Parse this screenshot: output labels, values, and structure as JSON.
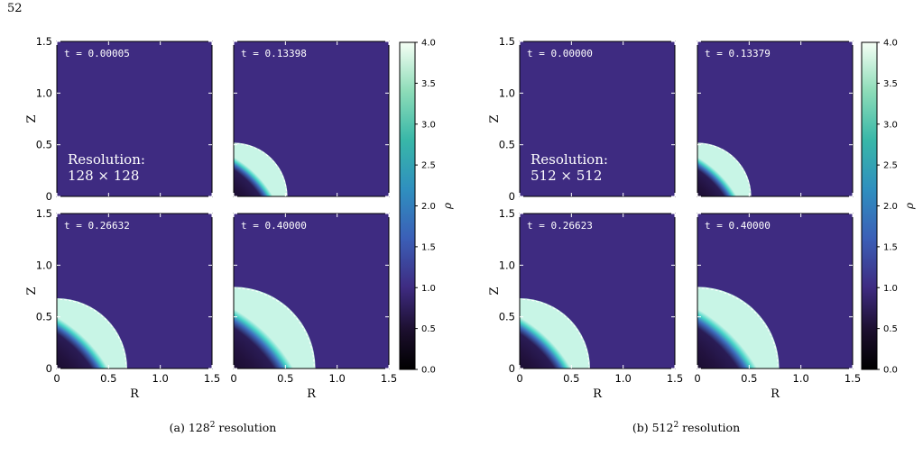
{
  "page_number": "52",
  "colormap": {
    "label": "ρ",
    "ticks": [
      "0.0",
      "0.5",
      "1.0",
      "1.5",
      "2.0",
      "2.5",
      "3.0",
      "3.5",
      "4.0"
    ],
    "range": [
      0,
      4
    ],
    "background_color": "#3e2b81"
  },
  "chart_data": [
    {
      "type": "heatmap",
      "xlabel": "R",
      "ylabel": "Z",
      "xlim": [
        0,
        1.5
      ],
      "ylim": [
        0,
        1.5
      ],
      "xticks": [
        "0",
        "0.5",
        "1.0",
        "1.5"
      ],
      "yticks": [
        "0",
        "0.5",
        "1.0",
        "1.5"
      ],
      "annotation": [
        "Resolution:",
        "128 × 128"
      ],
      "caption": {
        "label": "(a) 128",
        "sup": "2",
        "rest": " resolution"
      },
      "panels": [
        {
          "time_label": "t = 0.00005",
          "front_radius": 0.0
        },
        {
          "time_label": "t = 0.13398",
          "front_radius": 0.52
        },
        {
          "time_label": "t = 0.26632",
          "front_radius": 0.68
        },
        {
          "time_label": "t = 0.40000",
          "front_radius": 0.79
        }
      ]
    },
    {
      "type": "heatmap",
      "xlabel": "R",
      "ylabel": "Z",
      "xlim": [
        0,
        1.5
      ],
      "ylim": [
        0,
        1.5
      ],
      "xticks": [
        "0",
        "0.5",
        "1.0",
        "1.5"
      ],
      "yticks": [
        "0",
        "0.5",
        "1.0",
        "1.5"
      ],
      "annotation": [
        "Resolution:",
        "512 × 512"
      ],
      "caption": {
        "label": "(b) 512",
        "sup": "2",
        "rest": " resolution"
      },
      "panels": [
        {
          "time_label": "t = 0.00000",
          "front_radius": 0.0
        },
        {
          "time_label": "t = 0.13379",
          "front_radius": 0.52
        },
        {
          "time_label": "t = 0.26623",
          "front_radius": 0.68
        },
        {
          "time_label": "t = 0.40000",
          "front_radius": 0.79
        }
      ]
    }
  ]
}
